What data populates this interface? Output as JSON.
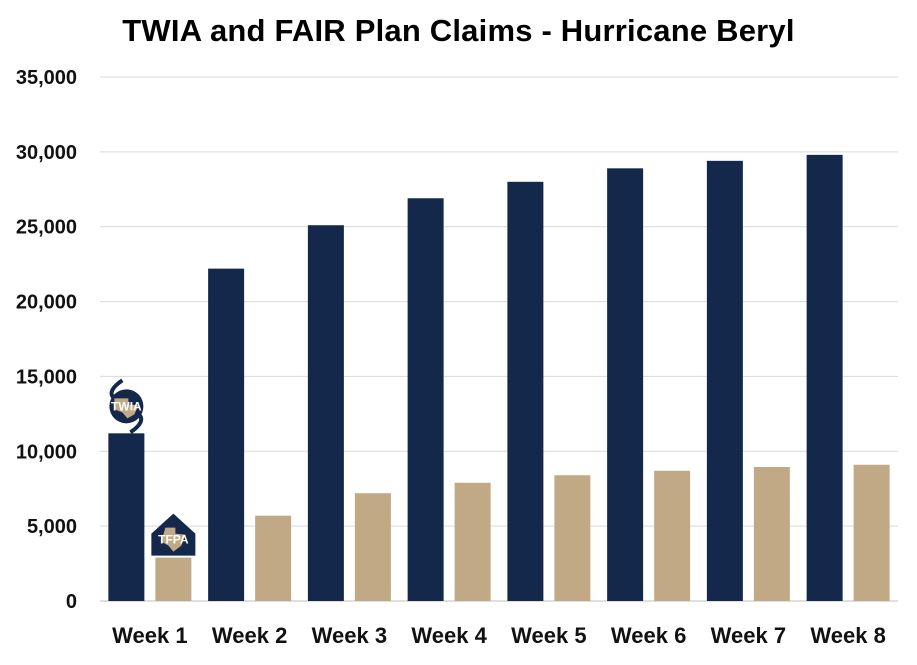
{
  "chart_data": {
    "type": "bar",
    "title": "TWIA and FAIR Plan Claims - Hurricane Beryl",
    "categories": [
      "Week 1",
      "Week 2",
      "Week 3",
      "Week 4",
      "Week 5",
      "Week 6",
      "Week 7",
      "Week 8"
    ],
    "series": [
      {
        "name": "TWIA",
        "color": "#14284b",
        "values": [
          11200,
          22200,
          25100,
          26900,
          28000,
          28900,
          29400,
          29800
        ]
      },
      {
        "name": "TFPA",
        "color": "#c2a986",
        "values": [
          2900,
          5700,
          7200,
          7900,
          8400,
          8700,
          8950,
          9100
        ]
      }
    ],
    "yticks": [
      "0",
      "5,000",
      "10,000",
      "15,000",
      "20,000",
      "25,000",
      "30,000",
      "35,000"
    ],
    "ylim": [
      0,
      35000
    ],
    "grid": true,
    "legend": "logos above first bars",
    "logos": [
      {
        "label": "TWIA",
        "icon": "twia-logo-icon"
      },
      {
        "label": "TFPA",
        "icon": "tfpa-logo-icon"
      }
    ]
  }
}
